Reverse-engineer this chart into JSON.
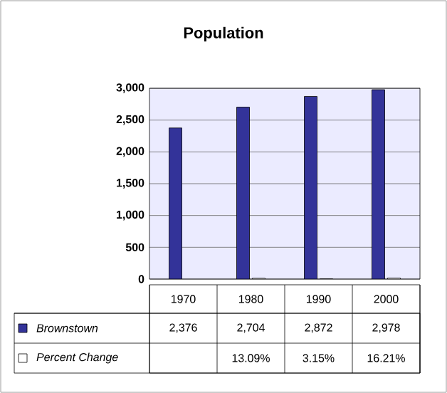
{
  "chart_data": {
    "type": "bar",
    "title": "Population",
    "categories": [
      "1970",
      "1980",
      "1990",
      "2000"
    ],
    "series": [
      {
        "name": "Brownstown",
        "color": "#333399",
        "values": [
          2376,
          2704,
          2872,
          2978
        ],
        "value_labels": [
          "2,376",
          "2,704",
          "2,872",
          "2,978"
        ]
      },
      {
        "name": "Percent Change",
        "color": "#ffffff",
        "values": [
          null,
          13.09,
          3.15,
          16.21
        ],
        "value_labels": [
          null,
          "13.09%",
          "3.15%",
          "16.21%"
        ]
      }
    ],
    "ylim": [
      0,
      3000
    ],
    "yticks": [
      0,
      {
        "value": 500,
        "label": "500"
      },
      {
        "value": 1000,
        "label": "1,000"
      },
      {
        "value": 1500,
        "label": "1,500"
      },
      {
        "value": 2000,
        "label": "2,000"
      },
      {
        "value": 2500,
        "label": "2,500"
      },
      {
        "value": 3000,
        "label": "3,000"
      }
    ],
    "grid": "y",
    "legend": "bottom"
  }
}
